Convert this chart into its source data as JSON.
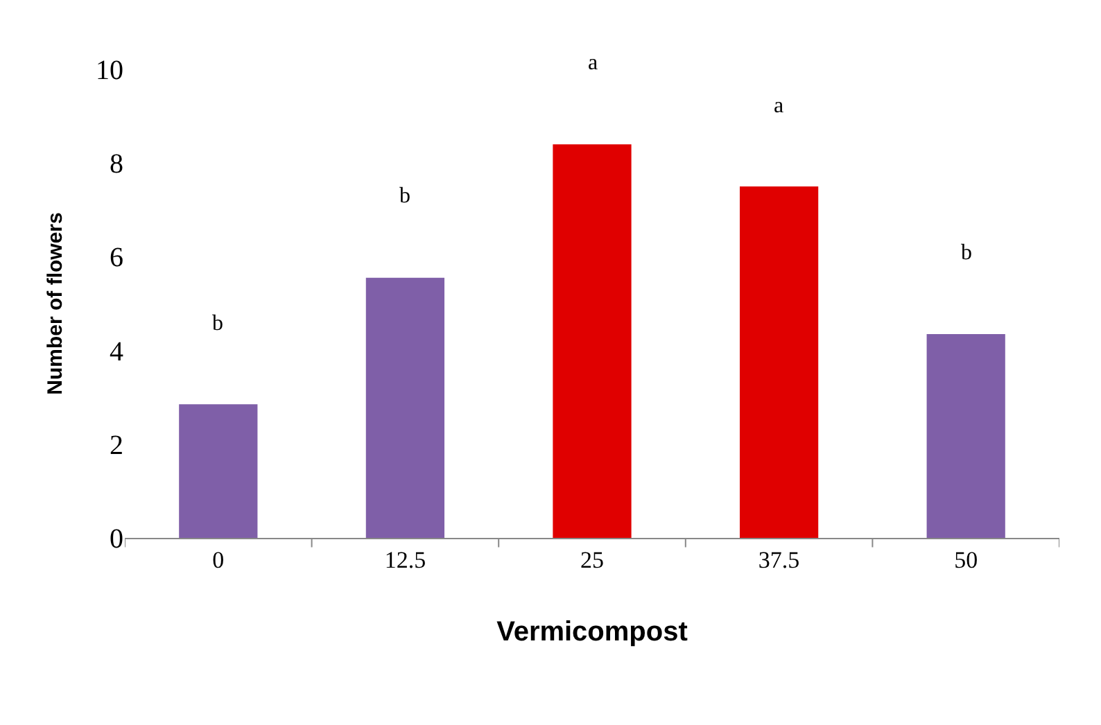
{
  "chart_data": {
    "type": "bar",
    "xlabel": "Vermicompost",
    "ylabel": "Number of flowers",
    "categories": [
      "0",
      "12.5",
      "25",
      "37.5",
      "50"
    ],
    "values": [
      2.85,
      5.55,
      8.4,
      7.5,
      4.35
    ],
    "colors": [
      "#7f5fa8",
      "#7f5fa8",
      "#e00000",
      "#e00000",
      "#7f5fa8"
    ],
    "ylim": [
      0,
      10
    ],
    "yticks": [
      0,
      2,
      4,
      6,
      8,
      10
    ],
    "annotations": [
      "b",
      "b",
      "a",
      "a",
      "b"
    ]
  }
}
